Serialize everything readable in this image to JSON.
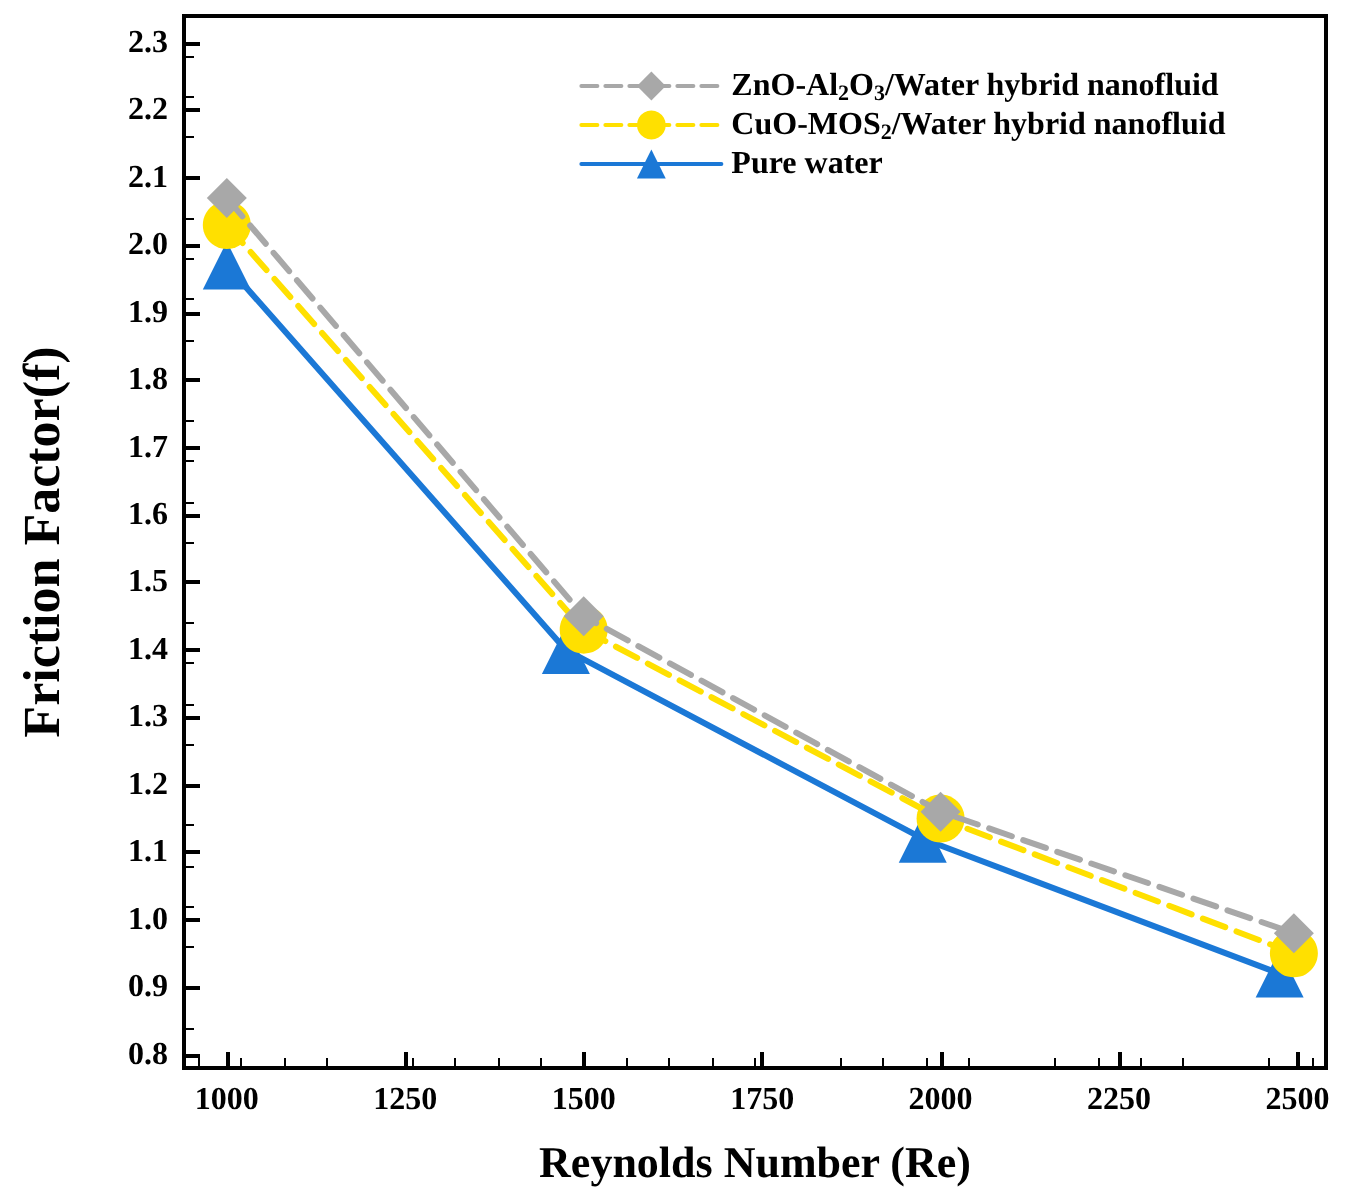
{
  "chart_data": {
    "type": "line",
    "xlabel": "Reynolds Number (Re)",
    "ylabel": "Friction Factor(f)",
    "xlim": [
      940,
      2540
    ],
    "xticks": [
      1000,
      1250,
      1500,
      1750,
      2000,
      2250,
      2500
    ],
    "ylim": [
      0.78,
      2.34
    ],
    "yticks": [
      0.8,
      0.9,
      {
        "value": 1.0,
        "label": "1.0"
      },
      1.1,
      1.2,
      1.3,
      1.4,
      1.5,
      1.6,
      1.7,
      1.8,
      1.9,
      {
        "value": 2.0,
        "label": "2.0"
      },
      2.1,
      2.2,
      2.3
    ],
    "legend": "top right",
    "grid": false,
    "series": [
      {
        "name": "ZnO-Al$_{2}$O$_{3}$/Water hybrid nanofluid",
        "color": "#a8a8a8",
        "marker": "diamond",
        "line_style": "dashed",
        "x": [
          1000,
          1500,
          2000,
          2495
        ],
        "values": [
          2.07,
          1.45,
          1.16,
          0.98
        ]
      },
      {
        "name": "CuO-MOS$_{2}$/Water hybrid nanofluid",
        "color": "#ffe000",
        "marker": "circle",
        "line_style": "dashed",
        "x": [
          1000,
          1500,
          2000,
          2495
        ],
        "values": [
          2.03,
          1.43,
          1.15,
          0.95
        ]
      },
      {
        "name": "Pure water",
        "color": "#1b78d6",
        "marker": "triangle",
        "line_style": "solid",
        "x": [
          1000,
          1475,
          1975,
          2475
        ],
        "values": [
          1.97,
          1.4,
          1.12,
          0.92
        ]
      }
    ]
  }
}
